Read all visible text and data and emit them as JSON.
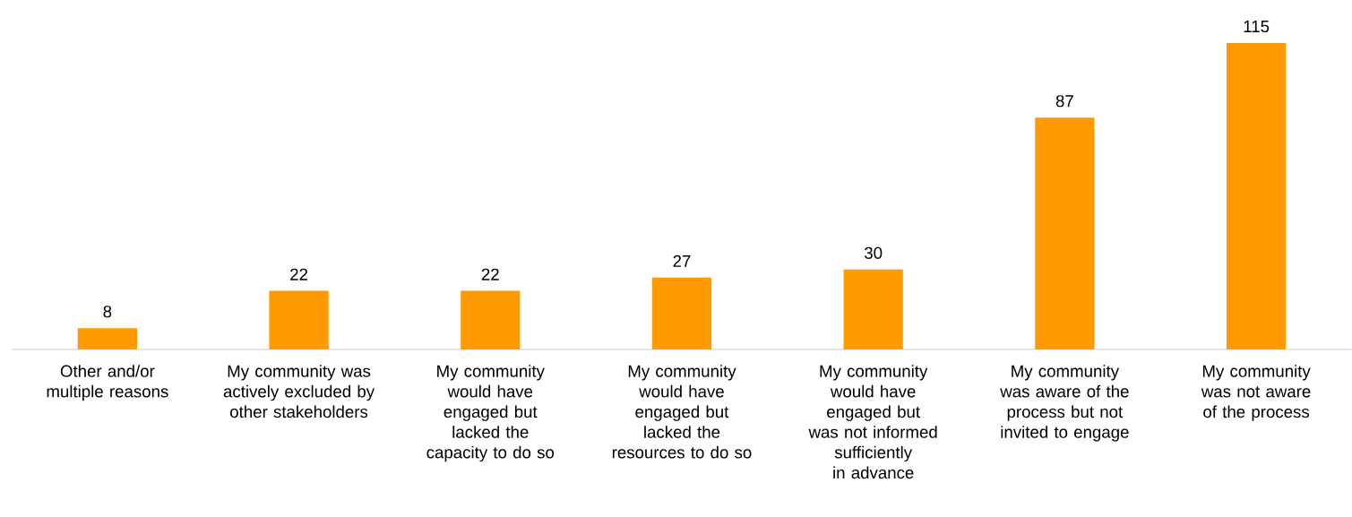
{
  "chart_data": {
    "type": "bar",
    "categories": [
      "Other and/or multiple reasons",
      "My community was actively excluded by other stakeholders",
      "My community would have engaged but lacked the capacity to do so",
      "My community would have engaged but lacked the resources to do so",
      "My community would have engaged but was not informed sufficiently in advance",
      "My community was aware of the process but not invited to engage",
      "My community was not aware of the process"
    ],
    "values": [
      8,
      22,
      22,
      27,
      30,
      87,
      115
    ],
    "color": "#ff9b00",
    "data_labels": true,
    "tick_labels": "x"
  }
}
